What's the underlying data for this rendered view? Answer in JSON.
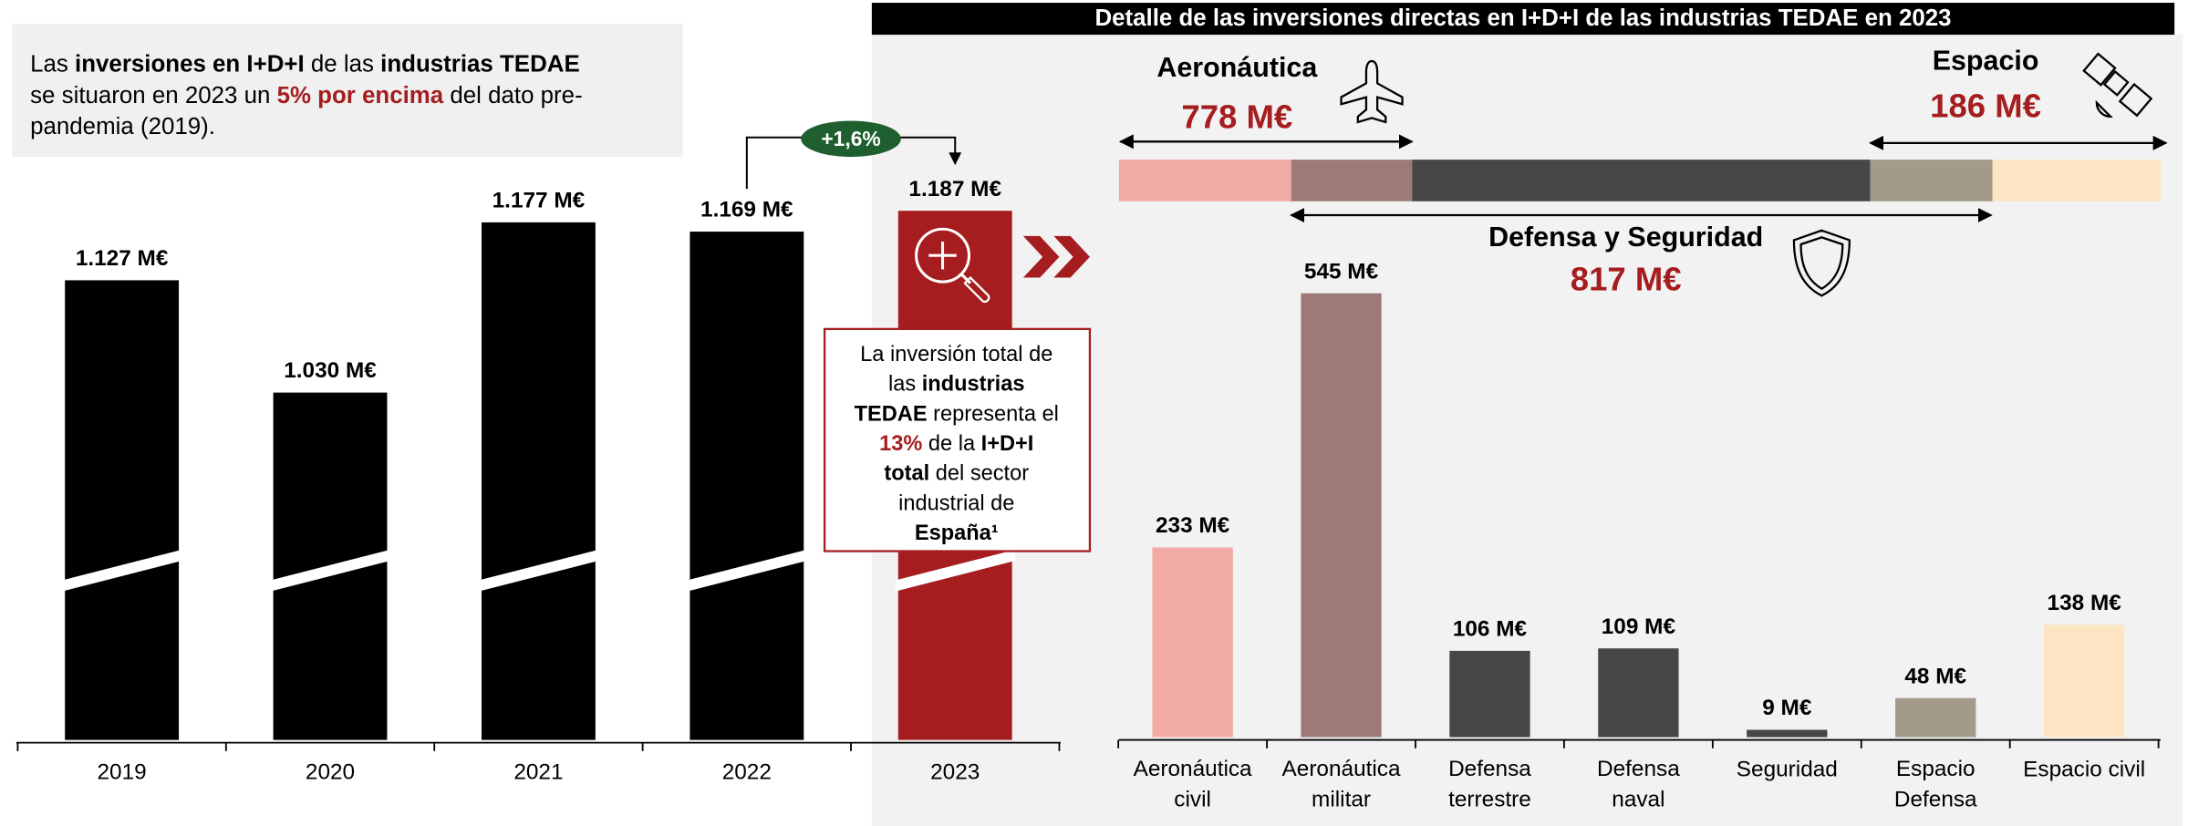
{
  "intro": {
    "lines": [
      [
        {
          "text": "Las "
        },
        {
          "text": "inversiones en I+D+I",
          "bold": true
        },
        {
          "text": " de las "
        },
        {
          "text": "industrias TEDAE",
          "bold": true
        }
      ],
      [
        {
          "text": "se situaron en 2023 un "
        },
        {
          "text": "5% por encima",
          "bold": true,
          "color": "#a51d1f"
        },
        {
          "text": " del dato pre-"
        }
      ],
      [
        {
          "text": "pandemia (2019)."
        }
      ]
    ]
  },
  "note": {
    "lines": [
      [
        {
          "text": "La inversión total de"
        }
      ],
      [
        {
          "text": "las "
        },
        {
          "text": "industrias",
          "bold": true
        }
      ],
      [
        {
          "text": "TEDAE",
          "bold": true
        },
        {
          "text": " representa el"
        }
      ],
      [
        {
          "text": "13%",
          "bold": true,
          "color": "#a51d1f"
        },
        {
          "text": " de la "
        },
        {
          "text": "I+D+I",
          "bold": true
        }
      ],
      [
        {
          "text": "total",
          "bold": true
        },
        {
          "text": " del sector"
        }
      ],
      [
        {
          "text": "industrial de"
        }
      ],
      [
        {
          "text": "España¹",
          "bold": true
        }
      ]
    ]
  },
  "chart_data": [
    {
      "type": "bar",
      "categories": [
        "2019",
        "2020",
        "2021",
        "2022",
        "2023"
      ],
      "values": [
        1127,
        1030,
        1177,
        1169,
        1187
      ],
      "value_labels": [
        "1.127 M€",
        "1.030 M€",
        "1.177 M€",
        "1.169 M€",
        "1.187 M€"
      ],
      "colors": [
        "#000000",
        "#000000",
        "#000000",
        "#000000",
        "#a51d1f"
      ],
      "ylim": [
        730,
        1200
      ],
      "axis_break": true,
      "change_label": "+1,6%"
    },
    {
      "type": "bar",
      "title": "Detalle de las inversiones directas en I+D+I de las industrias TEDAE en 2023",
      "categories": [
        "Aeronáutica\ncivil",
        "Aeronáutica\nmilitar",
        "Defensa\nterrestre",
        "Defensa\nnaval",
        "Seguridad",
        "Espacio\nDefensa",
        "Espacio civil"
      ],
      "values": [
        233,
        545,
        106,
        109,
        9,
        48,
        138
      ],
      "value_labels": [
        "233 M€",
        "545 M€",
        "106 M€",
        "109 M€",
        "9 M€",
        "48 M€",
        "138 M€"
      ],
      "colors": [
        "#f2aaa5",
        "#9c7b76",
        "#474747",
        "#474747",
        "#474747",
        "#a39a8b",
        "#fde5c4"
      ],
      "ylim": [
        0,
        600
      ],
      "groups": [
        {
          "name": "Aeronáutica",
          "value": 778,
          "value_label": "778 M€"
        },
        {
          "name": "Defensa y Seguridad",
          "value": 817,
          "value_label": "817 M€"
        },
        {
          "name": "Espacio",
          "value": 186,
          "value_label": "186 M€"
        }
      ]
    }
  ]
}
